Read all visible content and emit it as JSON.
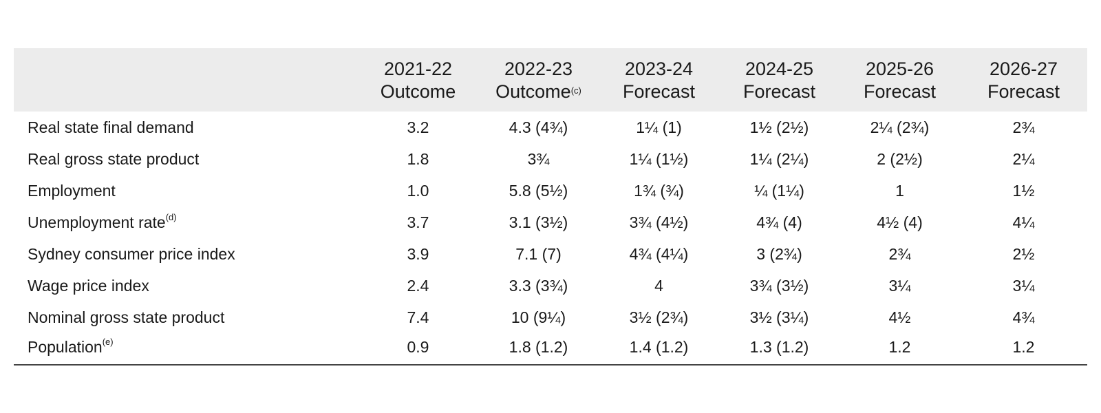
{
  "columns": [
    {
      "year": "2021-22",
      "type": "Outcome",
      "note": ""
    },
    {
      "year": "2022-23",
      "type": "Outcome",
      "note": "(c)"
    },
    {
      "year": "2023-24",
      "type": "Forecast",
      "note": ""
    },
    {
      "year": "2024-25",
      "type": "Forecast",
      "note": ""
    },
    {
      "year": "2025-26",
      "type": "Forecast",
      "note": ""
    },
    {
      "year": "2026-27",
      "type": "Forecast",
      "note": ""
    }
  ],
  "rows": [
    {
      "label": "Real state final demand",
      "note": "",
      "values": [
        "3.2",
        "4.3 (4¾)",
        "1¼ (1)",
        "1½ (2½)",
        "2¼ (2¾)",
        "2¾"
      ]
    },
    {
      "label": "Real gross state product",
      "note": "",
      "values": [
        "1.8",
        "3¾",
        "1¼ (1½)",
        "1¼ (2¼)",
        "2 (2½)",
        "2¼"
      ]
    },
    {
      "label": "Employment",
      "note": "",
      "values": [
        "1.0",
        "5.8 (5½)",
        "1¾ (¾)",
        "¼ (1¼)",
        "1",
        "1½"
      ]
    },
    {
      "label": "Unemployment rate",
      "note": "(d)",
      "values": [
        "3.7",
        "3.1 (3½)",
        "3¾ (4½)",
        "4¾ (4)",
        "4½ (4)",
        "4¼"
      ]
    },
    {
      "label": "Sydney consumer price index",
      "note": "",
      "values": [
        "3.9",
        "7.1 (7)",
        "4¾ (4¼)",
        "3 (2¾)",
        "2¾",
        "2½"
      ]
    },
    {
      "label": "Wage price index",
      "note": "",
      "values": [
        "2.4",
        "3.3 (3¾)",
        "4",
        "3¾ (3½)",
        "3¼",
        "3¼"
      ]
    },
    {
      "label": "Nominal gross state product",
      "note": "",
      "values": [
        "7.4",
        "10 (9¼)",
        "3½ (2¾)",
        "3½ (3¼)",
        "4½",
        "4¾"
      ]
    },
    {
      "label": "Population",
      "note": "(e)",
      "values": [
        "0.9",
        "1.8 (1.2)",
        "1.4 (1.2)",
        "1.3 (1.2)",
        "1.2",
        "1.2"
      ]
    }
  ]
}
